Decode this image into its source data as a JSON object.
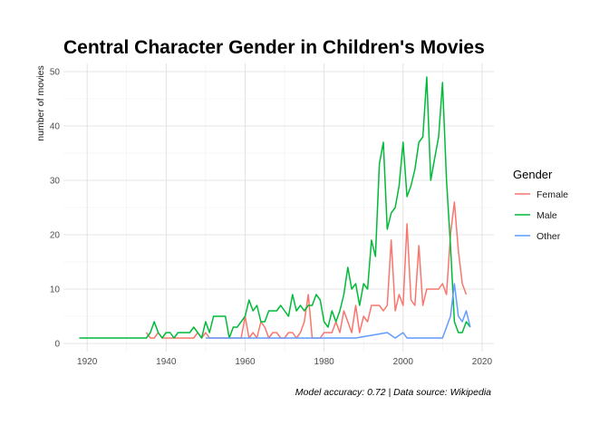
{
  "chart_data": {
    "type": "line",
    "title": "Central Character Gender in Children's Movies",
    "ylabel": "number of movies",
    "xlabel": "",
    "caption": "Model accuracy: 0.72 | Data source: Wikipedia",
    "xlim": [
      1914,
      2023
    ],
    "ylim": [
      -1.5,
      51.5
    ],
    "xticks": [
      1920,
      1940,
      1960,
      1980,
      2000,
      2020
    ],
    "yticks": [
      0,
      10,
      20,
      30,
      40,
      50
    ],
    "grid": true,
    "legend": {
      "title": "Gender",
      "position": "right"
    },
    "series": [
      {
        "name": "Female",
        "color": "#f8766d",
        "points": [
          [
            1935,
            2
          ],
          [
            1936,
            1
          ],
          [
            1937,
            1
          ],
          [
            1938,
            2
          ],
          [
            1939,
            1
          ],
          [
            1940,
            1
          ],
          [
            1941,
            1
          ],
          [
            1942,
            1
          ],
          [
            1943,
            1
          ],
          [
            1944,
            1
          ],
          [
            1945,
            1
          ],
          [
            1946,
            1
          ],
          [
            1947,
            1
          ],
          [
            1948,
            2
          ],
          [
            1949,
            1
          ],
          [
            1950,
            2
          ],
          [
            1951,
            1
          ],
          [
            1952,
            1
          ],
          [
            1953,
            1
          ],
          [
            1954,
            1
          ],
          [
            1955,
            1
          ],
          [
            1956,
            1
          ],
          [
            1957,
            1
          ],
          [
            1958,
            1
          ],
          [
            1959,
            1
          ],
          [
            1960,
            5
          ],
          [
            1961,
            1
          ],
          [
            1962,
            2
          ],
          [
            1963,
            1
          ],
          [
            1964,
            4
          ],
          [
            1965,
            3
          ],
          [
            1966,
            1
          ],
          [
            1967,
            2
          ],
          [
            1968,
            2
          ],
          [
            1969,
            1
          ],
          [
            1970,
            1
          ],
          [
            1971,
            2
          ],
          [
            1972,
            2
          ],
          [
            1973,
            1
          ],
          [
            1974,
            2
          ],
          [
            1975,
            4
          ],
          [
            1976,
            9
          ],
          [
            1977,
            1
          ],
          [
            1978,
            1
          ],
          [
            1979,
            1
          ],
          [
            1980,
            2
          ],
          [
            1981,
            2
          ],
          [
            1982,
            2
          ],
          [
            1983,
            4
          ],
          [
            1984,
            2
          ],
          [
            1985,
            6
          ],
          [
            1986,
            4
          ],
          [
            1987,
            2
          ],
          [
            1988,
            7
          ],
          [
            1989,
            2
          ],
          [
            1990,
            5
          ],
          [
            1991,
            4
          ],
          [
            1992,
            7
          ],
          [
            1993,
            7
          ],
          [
            1994,
            7
          ],
          [
            1995,
            6
          ],
          [
            1996,
            7
          ],
          [
            1997,
            19
          ],
          [
            1998,
            6
          ],
          [
            1999,
            9
          ],
          [
            2000,
            7
          ],
          [
            2001,
            22
          ],
          [
            2002,
            8
          ],
          [
            2003,
            7
          ],
          [
            2004,
            18
          ],
          [
            2005,
            7
          ],
          [
            2006,
            10
          ],
          [
            2007,
            10
          ],
          [
            2008,
            10
          ],
          [
            2009,
            10
          ],
          [
            2010,
            11
          ],
          [
            2011,
            9
          ],
          [
            2012,
            20
          ],
          [
            2013,
            26
          ],
          [
            2014,
            17
          ],
          [
            2015,
            11
          ],
          [
            2016,
            9
          ]
        ]
      },
      {
        "name": "Male",
        "color": "#00ba38",
        "points": [
          [
            1918,
            1
          ],
          [
            1934,
            1
          ],
          [
            1935,
            1
          ],
          [
            1936,
            2
          ],
          [
            1937,
            4
          ],
          [
            1938,
            2
          ],
          [
            1939,
            1
          ],
          [
            1940,
            2
          ],
          [
            1941,
            2
          ],
          [
            1942,
            1
          ],
          [
            1943,
            2
          ],
          [
            1944,
            2
          ],
          [
            1945,
            2
          ],
          [
            1946,
            2
          ],
          [
            1947,
            3
          ],
          [
            1948,
            2
          ],
          [
            1949,
            1
          ],
          [
            1950,
            4
          ],
          [
            1951,
            2
          ],
          [
            1952,
            5
          ],
          [
            1953,
            5
          ],
          [
            1954,
            5
          ],
          [
            1955,
            5
          ],
          [
            1956,
            1
          ],
          [
            1957,
            3
          ],
          [
            1958,
            3
          ],
          [
            1959,
            4
          ],
          [
            1960,
            5
          ],
          [
            1961,
            8
          ],
          [
            1962,
            6
          ],
          [
            1963,
            7
          ],
          [
            1964,
            4
          ],
          [
            1965,
            4
          ],
          [
            1966,
            6
          ],
          [
            1967,
            6
          ],
          [
            1968,
            6
          ],
          [
            1969,
            7
          ],
          [
            1970,
            6
          ],
          [
            1971,
            5
          ],
          [
            1972,
            9
          ],
          [
            1973,
            6
          ],
          [
            1974,
            7
          ],
          [
            1975,
            6
          ],
          [
            1976,
            7
          ],
          [
            1977,
            7
          ],
          [
            1978,
            9
          ],
          [
            1979,
            8
          ],
          [
            1980,
            4
          ],
          [
            1981,
            3
          ],
          [
            1982,
            6
          ],
          [
            1983,
            4
          ],
          [
            1984,
            6
          ],
          [
            1985,
            9
          ],
          [
            1986,
            14
          ],
          [
            1987,
            10
          ],
          [
            1988,
            11
          ],
          [
            1989,
            7
          ],
          [
            1990,
            11
          ],
          [
            1991,
            10
          ],
          [
            1992,
            19
          ],
          [
            1993,
            16
          ],
          [
            1994,
            33
          ],
          [
            1995,
            37
          ],
          [
            1996,
            21
          ],
          [
            1997,
            24
          ],
          [
            1998,
            25
          ],
          [
            1999,
            29
          ],
          [
            2000,
            37
          ],
          [
            2001,
            27
          ],
          [
            2002,
            29
          ],
          [
            2003,
            32
          ],
          [
            2004,
            37
          ],
          [
            2005,
            38
          ],
          [
            2006,
            49
          ],
          [
            2007,
            30
          ],
          [
            2008,
            34
          ],
          [
            2009,
            38
          ],
          [
            2010,
            48
          ],
          [
            2011,
            30
          ],
          [
            2012,
            18
          ],
          [
            2013,
            4
          ],
          [
            2014,
            2
          ],
          [
            2015,
            2
          ],
          [
            2016,
            4
          ],
          [
            2017,
            3
          ]
        ]
      },
      {
        "name": "Other",
        "color": "#619cff",
        "points": [
          [
            1950,
            1
          ],
          [
            1988,
            1
          ],
          [
            1996,
            2
          ],
          [
            1998,
            1
          ],
          [
            2000,
            2
          ],
          [
            2001,
            1
          ],
          [
            2010,
            1
          ],
          [
            2012,
            5
          ],
          [
            2013,
            11
          ],
          [
            2014,
            5
          ],
          [
            2015,
            4
          ],
          [
            2016,
            6
          ],
          [
            2017,
            3
          ]
        ]
      }
    ]
  }
}
